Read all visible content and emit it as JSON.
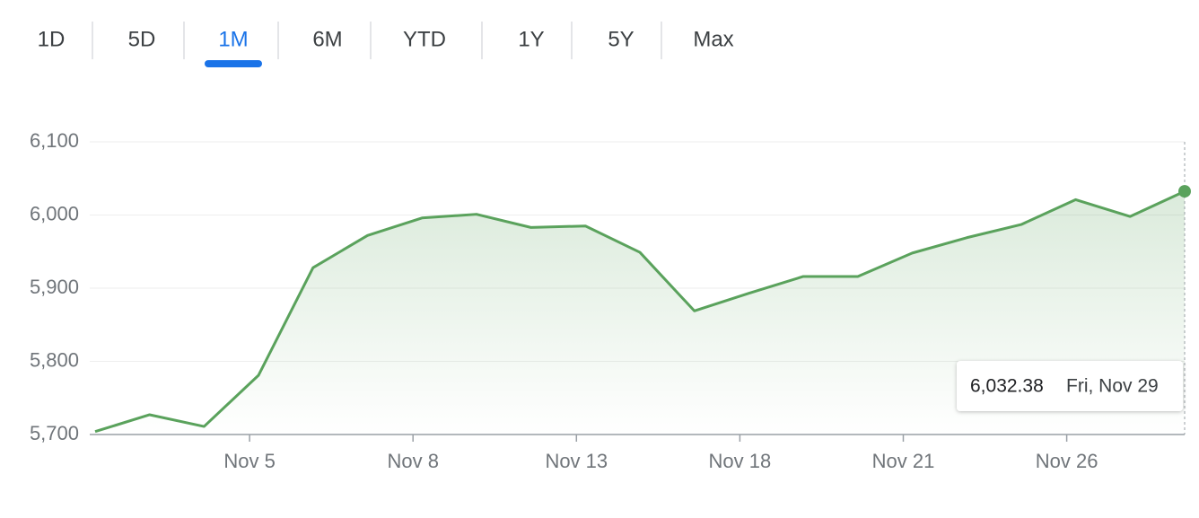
{
  "tabs": [
    "1D",
    "5D",
    "1M",
    "6M",
    "YTD",
    "1Y",
    "5Y",
    "Max"
  ],
  "selected_tab": 2,
  "chart_data": {
    "type": "line",
    "categories": [
      null,
      null,
      null,
      "Nov 5",
      null,
      null,
      "Nov 8",
      null,
      null,
      "Nov 13",
      null,
      null,
      "Nov 18",
      null,
      null,
      "Nov 21",
      null,
      null,
      "Nov 26",
      null,
      null
    ],
    "values": [
      5704,
      5727,
      5711,
      5781,
      5928,
      5972,
      5996,
      6001,
      5983,
      5985,
      5949,
      5869,
      5893,
      5916,
      5916,
      5948,
      5969,
      5987,
      6021,
      5998,
      6032.38
    ],
    "color": "#5aa25c",
    "ylim": [
      5700,
      6100
    ],
    "yticks": [
      {
        "value": 5700,
        "label": "5,700"
      },
      {
        "value": 5800,
        "label": "5,800"
      },
      {
        "value": 5900,
        "label": "5,900"
      },
      {
        "value": 6000,
        "label": "6,000"
      },
      {
        "value": 6100,
        "label": "6,100"
      }
    ],
    "grid": true,
    "tooltip": {
      "value_label": "6,032.38",
      "date": "Fri, Nov 29"
    }
  }
}
